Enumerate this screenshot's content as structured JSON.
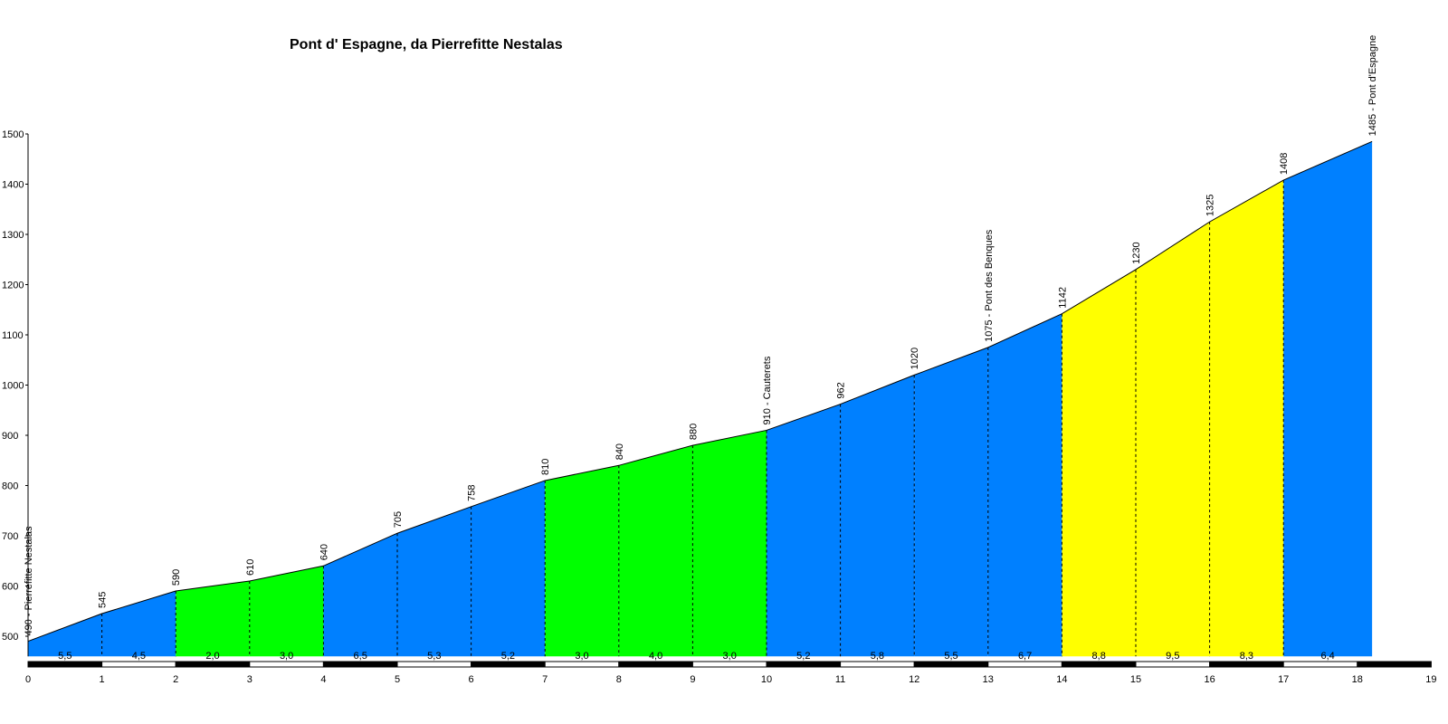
{
  "chart_data": {
    "type": "area",
    "title": "Pont d' Espagne, da Pierrefitte Nestalas",
    "xlabel": "",
    "ylabel": "",
    "xlim": [
      0,
      19
    ],
    "ylim": [
      460,
      1500
    ],
    "x_ticks": [
      0,
      1,
      2,
      3,
      4,
      5,
      6,
      7,
      8,
      9,
      10,
      11,
      12,
      13,
      14,
      15,
      16,
      17,
      18,
      19
    ],
    "y_ticks": [
      500,
      600,
      700,
      800,
      900,
      1000,
      1100,
      1200,
      1300,
      1400,
      1500
    ],
    "points": [
      {
        "km": 0,
        "alt": 490,
        "label": "490 - Pierrefitte Nestalas"
      },
      {
        "km": 1,
        "alt": 545,
        "label": "545"
      },
      {
        "km": 2,
        "alt": 590,
        "label": "590"
      },
      {
        "km": 3,
        "alt": 610,
        "label": "610"
      },
      {
        "km": 4,
        "alt": 640,
        "label": "640"
      },
      {
        "km": 5,
        "alt": 705,
        "label": "705"
      },
      {
        "km": 6,
        "alt": 758,
        "label": "758"
      },
      {
        "km": 7,
        "alt": 810,
        "label": "810"
      },
      {
        "km": 8,
        "alt": 840,
        "label": "840"
      },
      {
        "km": 9,
        "alt": 880,
        "label": "880"
      },
      {
        "km": 10,
        "alt": 910,
        "label": "910 - Cauterets"
      },
      {
        "km": 11,
        "alt": 962,
        "label": "962"
      },
      {
        "km": 12,
        "alt": 1020,
        "label": "1020"
      },
      {
        "km": 13,
        "alt": 1075,
        "label": "1075 - Pont des Benques"
      },
      {
        "km": 14,
        "alt": 1142,
        "label": "1142"
      },
      {
        "km": 15,
        "alt": 1230,
        "label": "1230"
      },
      {
        "km": 16,
        "alt": 1325,
        "label": "1325"
      },
      {
        "km": 17,
        "alt": 1408,
        "label": "1408"
      },
      {
        "km": 18.2,
        "alt": 1485,
        "label": "1485 - Pont d'Espagne"
      }
    ],
    "segments": [
      {
        "gradient": "5,5",
        "color": "#0080ff"
      },
      {
        "gradient": "4,5",
        "color": "#0080ff"
      },
      {
        "gradient": "2,0",
        "color": "#00ff00"
      },
      {
        "gradient": "3,0",
        "color": "#00ff00"
      },
      {
        "gradient": "6,5",
        "color": "#0080ff"
      },
      {
        "gradient": "5,3",
        "color": "#0080ff"
      },
      {
        "gradient": "5,2",
        "color": "#0080ff"
      },
      {
        "gradient": "3,0",
        "color": "#00ff00"
      },
      {
        "gradient": "4,0",
        "color": "#00ff00"
      },
      {
        "gradient": "3,0",
        "color": "#00ff00"
      },
      {
        "gradient": "5,2",
        "color": "#0080ff"
      },
      {
        "gradient": "5,8",
        "color": "#0080ff"
      },
      {
        "gradient": "5,5",
        "color": "#0080ff"
      },
      {
        "gradient": "6,7",
        "color": "#0080ff"
      },
      {
        "gradient": "8,8",
        "color": "#ffff00"
      },
      {
        "gradient": "9,5",
        "color": "#ffff00"
      },
      {
        "gradient": "8,3",
        "color": "#ffff00"
      },
      {
        "gradient": "6,4",
        "color": "#0080ff"
      }
    ]
  }
}
